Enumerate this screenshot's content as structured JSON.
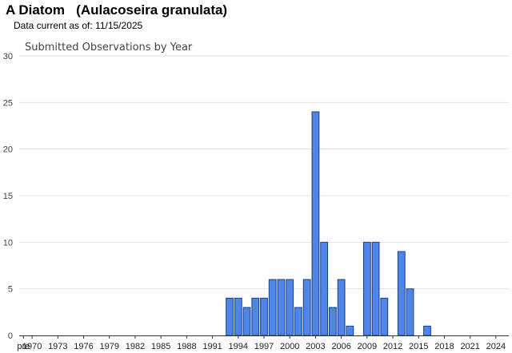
{
  "page": {
    "title": "A Diatom   (Aulacoseira granulata)",
    "subtitle": "Data current as of: 11/15/2025"
  },
  "colors": {
    "bar_fill": "#4f86e6",
    "bar_stroke": "#1a3d8f",
    "grid": "#e2e2e2",
    "axis": "#333333"
  },
  "chart_data": {
    "type": "bar",
    "title": "Submitted Observations by Year",
    "xlabel": "",
    "ylabel": "",
    "ylim": [
      0,
      30
    ],
    "yticks": [
      0,
      5,
      10,
      15,
      20,
      25,
      30
    ],
    "grid": true,
    "legend": "none",
    "categories": [
      "pre 1970",
      "1970",
      "1971",
      "1972",
      "1973",
      "1974",
      "1975",
      "1976",
      "1977",
      "1978",
      "1979",
      "1980",
      "1981",
      "1982",
      "1983",
      "1984",
      "1985",
      "1986",
      "1987",
      "1988",
      "1989",
      "1990",
      "1991",
      "1992",
      "1993",
      "1994",
      "1995",
      "1996",
      "1997",
      "1998",
      "1999",
      "2000",
      "2001",
      "2002",
      "2003",
      "2004",
      "2005",
      "2006",
      "2007",
      "2008",
      "2009",
      "2010",
      "2011",
      "2012",
      "2013",
      "2014",
      "2015",
      "2016",
      "2017",
      "2018",
      "2019",
      "2020",
      "2021",
      "2022",
      "2023",
      "2024",
      "2025"
    ],
    "tick_labels": [
      "pre",
      "1970",
      "1973",
      "1976",
      "1979",
      "1982",
      "1985",
      "1988",
      "1991",
      "1994",
      "1997",
      "2000",
      "2003",
      "2006",
      "2009",
      "2012",
      "2015",
      "2018",
      "2021",
      "2024"
    ],
    "values": [
      0,
      0,
      0,
      0,
      0,
      0,
      0,
      0,
      0,
      0,
      0,
      0,
      0,
      0,
      0,
      0,
      0,
      0,
      0,
      0,
      0,
      0,
      0,
      0,
      4,
      4,
      3,
      4,
      4,
      6,
      6,
      6,
      3,
      6,
      24,
      10,
      3,
      6,
      1,
      0,
      10,
      10,
      4,
      0,
      9,
      5,
      0,
      1,
      0,
      0,
      0,
      0,
      0,
      0,
      0,
      0,
      0
    ]
  }
}
